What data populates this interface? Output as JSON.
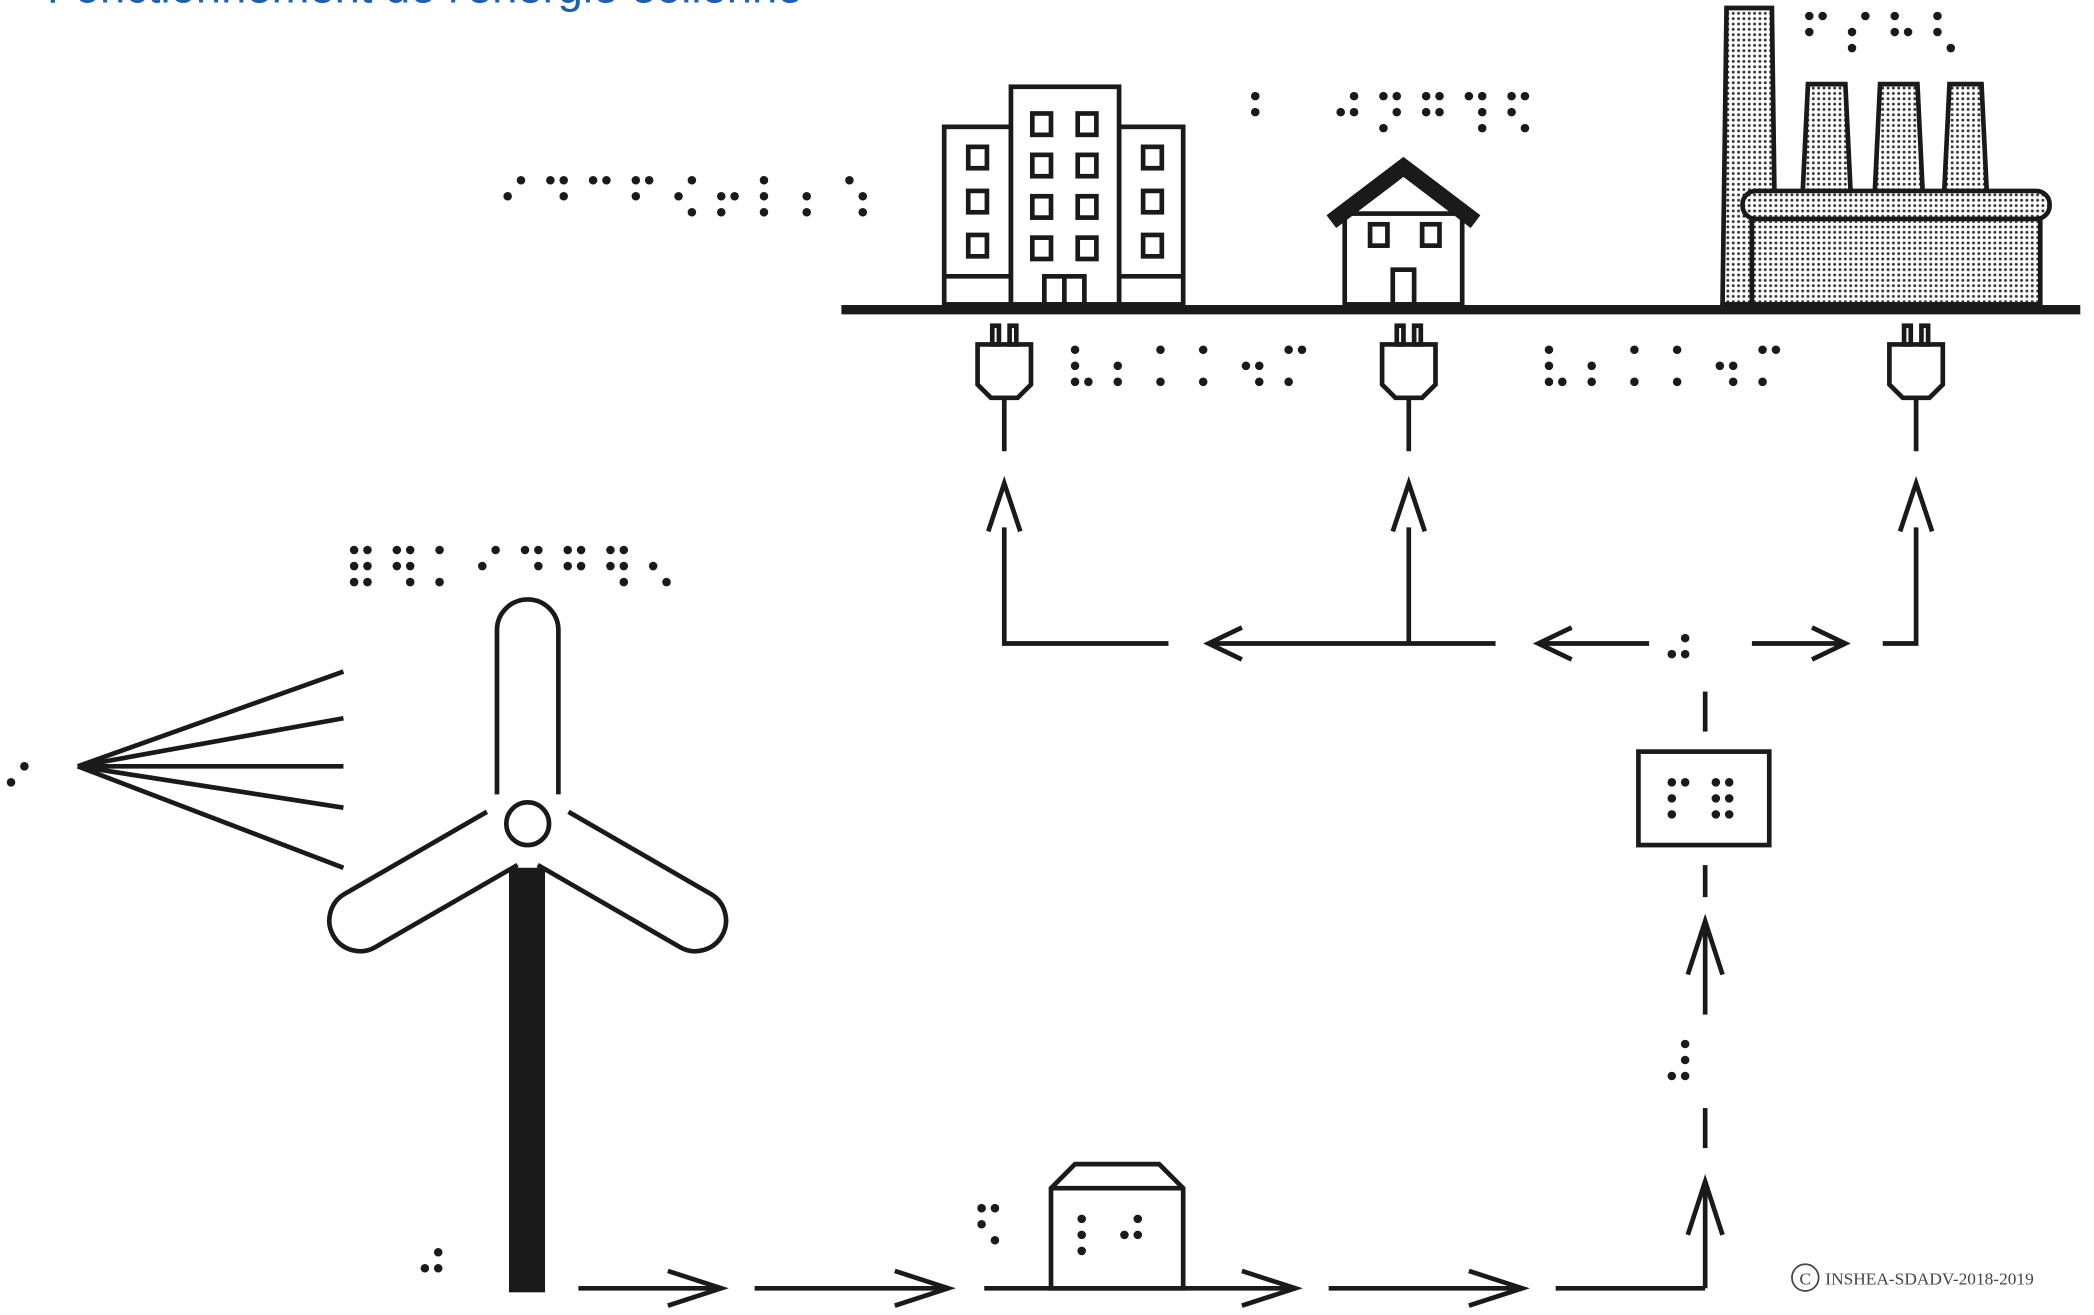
{
  "header": {
    "title": "Fonctionnement de l'énergie éolienne"
  },
  "footer": {
    "copyright_mark": "C",
    "copyright": "INSHEA-SDADV-2018-2019"
  }
}
